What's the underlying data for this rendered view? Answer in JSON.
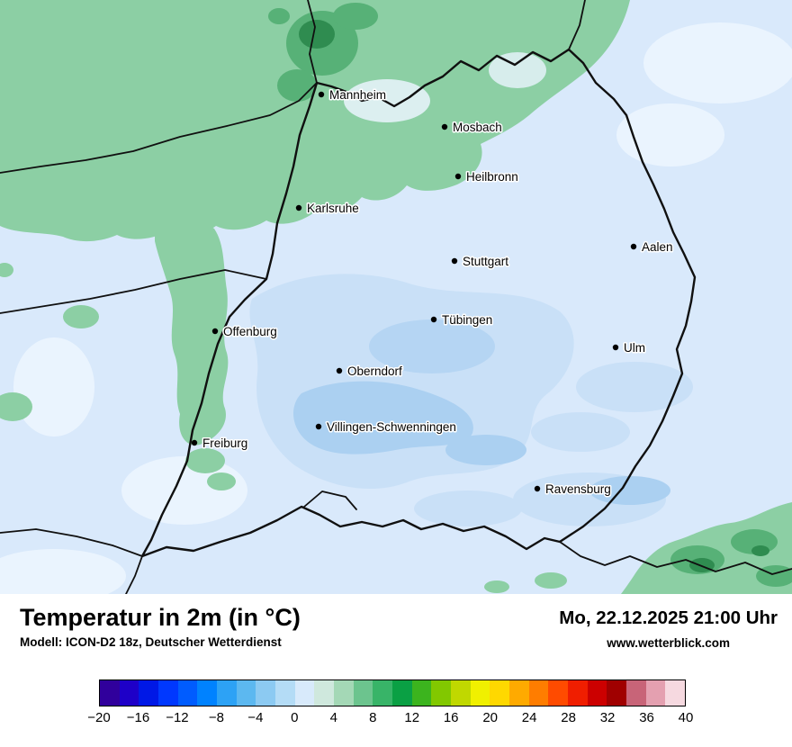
{
  "map": {
    "cities": [
      {
        "name": "Mannheim"
      },
      {
        "name": "Mosbach"
      },
      {
        "name": "Heilbronn"
      },
      {
        "name": "Karlsruhe"
      },
      {
        "name": "Stuttgart"
      },
      {
        "name": "Aalen"
      },
      {
        "name": "Tübingen"
      },
      {
        "name": "Offenburg"
      },
      {
        "name": "Ulm"
      },
      {
        "name": "Oberndorf"
      },
      {
        "name": "Villingen-Schwenningen"
      },
      {
        "name": "Freiburg"
      },
      {
        "name": "Ravensburg"
      }
    ],
    "palette": {
      "map_background": "#d9e9fb",
      "pale_patch": "#eaf4fe",
      "blue_patch_light": "#c9e0f7",
      "blue_patch_medium": "#abd0f1",
      "green_light": "#8ccfa4",
      "green_medium": "#57b177",
      "green_dark": "#2f8c50",
      "border_color": "#101010"
    }
  },
  "footer": {
    "title": "Temperatur in 2m (in °C)",
    "model_line": "Modell: ICON-D2 18z, Deutscher Wetterdienst",
    "datetime": "Mo, 22.12.2025 21:00 Uhr",
    "website": "www.wetterblick.com"
  },
  "colorbar": {
    "ticks": [
      "−20",
      "−16",
      "−12",
      "−8",
      "−4",
      "0",
      "4",
      "8",
      "12",
      "16",
      "20",
      "24",
      "28",
      "32",
      "36",
      "40"
    ],
    "colors": [
      "#30009c",
      "#1e00c8",
      "#0018e6",
      "#0038ff",
      "#005cff",
      "#0082ff",
      "#2da2f5",
      "#5cb8f0",
      "#8ccaf2",
      "#b4dcf6",
      "#d8eafb",
      "#cfe8dd",
      "#a4d8b6",
      "#6cc48e",
      "#38b468",
      "#0aa044",
      "#3cb41e",
      "#82c800",
      "#c0d800",
      "#f0f000",
      "#ffd800",
      "#ffaa00",
      "#ff7d00",
      "#ff4b00",
      "#f01e00",
      "#cc0000",
      "#a00000",
      "#c86478",
      "#e4a0b0",
      "#f6d9e0"
    ]
  }
}
